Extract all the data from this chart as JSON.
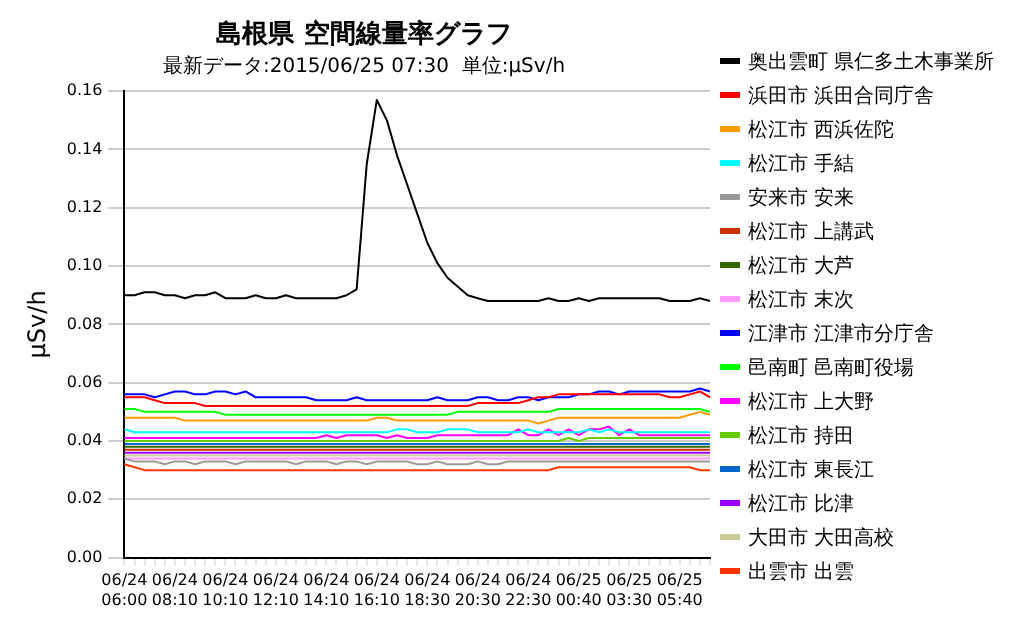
{
  "chart_data": {
    "type": "line",
    "title": "島根県 空間線量率グラフ",
    "subtitle": "最新データ:2015/06/25 07:30  単位:μSv/h",
    "ylabel": "μSv/h",
    "categories": [
      "06/24 06:00",
      null,
      null,
      null,
      null,
      "06/24 08:10",
      null,
      null,
      null,
      null,
      "06/24 10:10",
      null,
      null,
      null,
      null,
      "06/24 12:10",
      null,
      null,
      null,
      null,
      "06/24 14:10",
      null,
      null,
      null,
      null,
      "06/24 16:10",
      null,
      null,
      null,
      null,
      "06/24 18:30",
      null,
      null,
      null,
      null,
      "06/24 20:30",
      null,
      null,
      null,
      null,
      "06/24 22:30",
      null,
      null,
      null,
      null,
      "06/25 00:40",
      null,
      null,
      null,
      null,
      "06/25 03:30",
      null,
      null,
      null,
      null,
      "06/25 05:40",
      null,
      null,
      null
    ],
    "ylim": [
      0,
      0.16
    ],
    "yticks": [
      {
        "value": 0,
        "label": "0.00"
      },
      {
        "value": 0.02,
        "label": "0.02"
      },
      {
        "value": 0.04,
        "label": "0.04"
      },
      {
        "value": 0.06,
        "label": "0.06"
      },
      {
        "value": 0.08,
        "label": "0.08"
      },
      {
        "value": 0.1,
        "label": "0.10"
      },
      {
        "value": 0.12,
        "label": "0.12"
      },
      {
        "value": 0.14,
        "label": "0.14"
      },
      {
        "value": 0.16,
        "label": "0.16"
      }
    ],
    "grid": "y",
    "legend": "right",
    "marker": "none",
    "line_style": "solid",
    "series": [
      {
        "name": "奥出雲町 県仁多土木事業所",
        "color": "#000000",
        "values": [
          0.09,
          0.09,
          0.091,
          0.091,
          0.09,
          0.09,
          0.089,
          0.09,
          0.09,
          0.091,
          0.089,
          0.089,
          0.089,
          0.09,
          0.089,
          0.089,
          0.09,
          0.089,
          0.089,
          0.089,
          0.089,
          0.089,
          0.09,
          0.092,
          0.135,
          0.157,
          0.15,
          0.138,
          0.128,
          0.118,
          0.108,
          0.101,
          0.096,
          0.093,
          0.09,
          0.089,
          0.088,
          0.088,
          0.088,
          0.088,
          0.088,
          0.088,
          0.089,
          0.088,
          0.088,
          0.089,
          0.088,
          0.089,
          0.089,
          0.089,
          0.089,
          0.089,
          0.089,
          0.089,
          0.088,
          0.088,
          0.088,
          0.089,
          0.088
        ]
      },
      {
        "name": "浜田市 浜田合同庁舎",
        "color": "#ff0000",
        "values": [
          0.055,
          0.055,
          0.055,
          0.054,
          0.053,
          0.053,
          0.053,
          0.053,
          0.052,
          0.052,
          0.052,
          0.052,
          0.052,
          0.052,
          0.052,
          0.052,
          0.052,
          0.052,
          0.052,
          0.052,
          0.052,
          0.052,
          0.052,
          0.052,
          0.052,
          0.052,
          0.052,
          0.052,
          0.052,
          0.052,
          0.052,
          0.052,
          0.052,
          0.052,
          0.052,
          0.053,
          0.053,
          0.053,
          0.053,
          0.053,
          0.054,
          0.055,
          0.055,
          0.056,
          0.056,
          0.056,
          0.056,
          0.056,
          0.056,
          0.056,
          0.056,
          0.056,
          0.056,
          0.056,
          0.055,
          0.055,
          0.056,
          0.057,
          0.055
        ]
      },
      {
        "name": "松江市 西浜佐陀",
        "color": "#ff9900",
        "values": [
          0.048,
          0.048,
          0.048,
          0.048,
          0.048,
          0.048,
          0.047,
          0.047,
          0.047,
          0.047,
          0.047,
          0.047,
          0.047,
          0.047,
          0.047,
          0.047,
          0.047,
          0.047,
          0.047,
          0.047,
          0.047,
          0.047,
          0.047,
          0.047,
          0.047,
          0.048,
          0.048,
          0.047,
          0.047,
          0.047,
          0.047,
          0.047,
          0.047,
          0.047,
          0.047,
          0.047,
          0.047,
          0.047,
          0.047,
          0.047,
          0.047,
          0.046,
          0.047,
          0.048,
          0.048,
          0.048,
          0.048,
          0.048,
          0.048,
          0.048,
          0.048,
          0.048,
          0.048,
          0.048,
          0.048,
          0.048,
          0.049,
          0.05,
          0.049
        ]
      },
      {
        "name": "松江市 手結",
        "color": "#00ffff",
        "values": [
          0.044,
          0.043,
          0.043,
          0.043,
          0.043,
          0.043,
          0.043,
          0.043,
          0.043,
          0.043,
          0.043,
          0.043,
          0.043,
          0.043,
          0.043,
          0.043,
          0.043,
          0.043,
          0.043,
          0.043,
          0.043,
          0.043,
          0.043,
          0.043,
          0.043,
          0.043,
          0.043,
          0.044,
          0.044,
          0.043,
          0.043,
          0.043,
          0.044,
          0.044,
          0.044,
          0.043,
          0.043,
          0.043,
          0.043,
          0.043,
          0.044,
          0.043,
          0.043,
          0.043,
          0.043,
          0.043,
          0.044,
          0.043,
          0.044,
          0.043,
          0.043,
          0.043,
          0.043,
          0.043,
          0.043,
          0.043,
          0.043,
          0.043,
          0.043
        ]
      },
      {
        "name": "安来市 安来",
        "color": "#999999",
        "values": [
          0.034,
          0.033,
          0.033,
          0.033,
          0.032,
          0.033,
          0.033,
          0.032,
          0.033,
          0.033,
          0.033,
          0.032,
          0.033,
          0.033,
          0.033,
          0.033,
          0.033,
          0.032,
          0.033,
          0.033,
          0.033,
          0.032,
          0.033,
          0.033,
          0.032,
          0.033,
          0.033,
          0.033,
          0.033,
          0.032,
          0.032,
          0.033,
          0.032,
          0.032,
          0.032,
          0.033,
          0.032,
          0.032,
          0.033,
          0.033,
          0.033,
          0.033,
          0.033,
          0.033,
          0.033,
          0.033,
          0.033,
          0.033,
          0.033,
          0.033,
          0.033,
          0.033,
          0.033,
          0.033,
          0.033,
          0.033,
          0.033,
          0.033,
          0.033
        ]
      },
      {
        "name": "松江市 上講武",
        "color": "#cc3300",
        "values": [
          0.037,
          0.037,
          0.037,
          0.037,
          0.037,
          0.037,
          0.037,
          0.037,
          0.037,
          0.037,
          0.037,
          0.037,
          0.037,
          0.037,
          0.037,
          0.037,
          0.037,
          0.037,
          0.037,
          0.037,
          0.037,
          0.037,
          0.037,
          0.037,
          0.037,
          0.037,
          0.037,
          0.037,
          0.037,
          0.037,
          0.037,
          0.037,
          0.037,
          0.037,
          0.037,
          0.037,
          0.037,
          0.037,
          0.037,
          0.037,
          0.037,
          0.037,
          0.037,
          0.037,
          0.037,
          0.037,
          0.037,
          0.037,
          0.037,
          0.037,
          0.037,
          0.037,
          0.037,
          0.037,
          0.037,
          0.037,
          0.037,
          0.037,
          0.037
        ]
      },
      {
        "name": "松江市 大芦",
        "color": "#336600",
        "values": [
          0.038,
          0.038,
          0.038,
          0.038,
          0.038,
          0.038,
          0.038,
          0.038,
          0.038,
          0.038,
          0.038,
          0.038,
          0.038,
          0.038,
          0.038,
          0.038,
          0.038,
          0.038,
          0.038,
          0.038,
          0.038,
          0.038,
          0.038,
          0.038,
          0.038,
          0.038,
          0.038,
          0.038,
          0.038,
          0.038,
          0.038,
          0.038,
          0.038,
          0.038,
          0.038,
          0.038,
          0.038,
          0.038,
          0.038,
          0.038,
          0.038,
          0.038,
          0.038,
          0.038,
          0.038,
          0.038,
          0.038,
          0.038,
          0.038,
          0.038,
          0.038,
          0.038,
          0.038,
          0.038,
          0.038,
          0.038,
          0.038,
          0.038,
          0.038
        ]
      },
      {
        "name": "松江市 末次",
        "color": "#ff99ff",
        "values": [
          0.034,
          0.034,
          0.034,
          0.034,
          0.034,
          0.034,
          0.034,
          0.034,
          0.034,
          0.034,
          0.034,
          0.034,
          0.034,
          0.034,
          0.034,
          0.034,
          0.034,
          0.034,
          0.034,
          0.034,
          0.034,
          0.034,
          0.034,
          0.034,
          0.034,
          0.034,
          0.034,
          0.034,
          0.034,
          0.034,
          0.034,
          0.034,
          0.034,
          0.034,
          0.034,
          0.034,
          0.034,
          0.034,
          0.034,
          0.034,
          0.034,
          0.034,
          0.034,
          0.034,
          0.034,
          0.034,
          0.034,
          0.034,
          0.034,
          0.034,
          0.034,
          0.034,
          0.034,
          0.034,
          0.034,
          0.034,
          0.034,
          0.034,
          0.034
        ]
      },
      {
        "name": "江津市 江津市分庁舎",
        "color": "#0000ff",
        "values": [
          0.056,
          0.056,
          0.056,
          0.055,
          0.056,
          0.057,
          0.057,
          0.056,
          0.056,
          0.057,
          0.057,
          0.056,
          0.057,
          0.055,
          0.055,
          0.055,
          0.055,
          0.055,
          0.055,
          0.054,
          0.054,
          0.054,
          0.054,
          0.055,
          0.054,
          0.054,
          0.054,
          0.054,
          0.054,
          0.054,
          0.054,
          0.055,
          0.054,
          0.054,
          0.054,
          0.055,
          0.055,
          0.054,
          0.054,
          0.055,
          0.055,
          0.054,
          0.055,
          0.055,
          0.055,
          0.056,
          0.056,
          0.057,
          0.057,
          0.056,
          0.057,
          0.057,
          0.057,
          0.057,
          0.057,
          0.057,
          0.057,
          0.058,
          0.057
        ]
      },
      {
        "name": "邑南町 邑南町役場",
        "color": "#00ff00",
        "values": [
          0.051,
          0.051,
          0.05,
          0.05,
          0.05,
          0.05,
          0.05,
          0.05,
          0.05,
          0.05,
          0.049,
          0.049,
          0.049,
          0.049,
          0.049,
          0.049,
          0.049,
          0.049,
          0.049,
          0.049,
          0.049,
          0.049,
          0.049,
          0.049,
          0.049,
          0.049,
          0.049,
          0.049,
          0.049,
          0.049,
          0.049,
          0.049,
          0.049,
          0.05,
          0.05,
          0.05,
          0.05,
          0.05,
          0.05,
          0.05,
          0.05,
          0.05,
          0.05,
          0.051,
          0.051,
          0.051,
          0.051,
          0.051,
          0.051,
          0.051,
          0.051,
          0.051,
          0.051,
          0.051,
          0.051,
          0.051,
          0.051,
          0.051,
          0.05
        ]
      },
      {
        "name": "松江市 上大野",
        "color": "#ff00ff",
        "values": [
          0.041,
          0.041,
          0.041,
          0.041,
          0.041,
          0.041,
          0.041,
          0.041,
          0.041,
          0.041,
          0.041,
          0.041,
          0.041,
          0.041,
          0.041,
          0.041,
          0.041,
          0.041,
          0.041,
          0.041,
          0.042,
          0.041,
          0.042,
          0.042,
          0.042,
          0.042,
          0.041,
          0.042,
          0.041,
          0.041,
          0.041,
          0.042,
          0.042,
          0.042,
          0.042,
          0.042,
          0.042,
          0.042,
          0.042,
          0.044,
          0.042,
          0.042,
          0.044,
          0.042,
          0.044,
          0.042,
          0.044,
          0.044,
          0.045,
          0.042,
          0.044,
          0.042,
          0.042,
          0.042,
          0.042,
          0.042,
          0.042,
          0.042,
          0.042
        ]
      },
      {
        "name": "松江市 持田",
        "color": "#66cc00",
        "values": [
          0.04,
          0.04,
          0.04,
          0.04,
          0.04,
          0.04,
          0.04,
          0.04,
          0.04,
          0.04,
          0.04,
          0.04,
          0.04,
          0.04,
          0.04,
          0.04,
          0.04,
          0.04,
          0.04,
          0.04,
          0.04,
          0.04,
          0.04,
          0.04,
          0.04,
          0.04,
          0.04,
          0.04,
          0.04,
          0.04,
          0.04,
          0.04,
          0.04,
          0.04,
          0.04,
          0.04,
          0.04,
          0.04,
          0.04,
          0.04,
          0.04,
          0.04,
          0.04,
          0.04,
          0.041,
          0.04,
          0.041,
          0.041,
          0.041,
          0.041,
          0.041,
          0.041,
          0.041,
          0.041,
          0.041,
          0.041,
          0.041,
          0.041,
          0.041
        ]
      },
      {
        "name": "松江市 東長江",
        "color": "#0066cc",
        "values": [
          0.039,
          0.039,
          0.039,
          0.039,
          0.039,
          0.039,
          0.039,
          0.039,
          0.039,
          0.039,
          0.039,
          0.039,
          0.039,
          0.039,
          0.039,
          0.039,
          0.039,
          0.039,
          0.039,
          0.039,
          0.039,
          0.039,
          0.039,
          0.039,
          0.039,
          0.039,
          0.039,
          0.039,
          0.039,
          0.039,
          0.039,
          0.039,
          0.039,
          0.039,
          0.039,
          0.039,
          0.039,
          0.039,
          0.039,
          0.039,
          0.039,
          0.039,
          0.039,
          0.039,
          0.039,
          0.039,
          0.039,
          0.039,
          0.039,
          0.039,
          0.039,
          0.039,
          0.039,
          0.039,
          0.039,
          0.039,
          0.039,
          0.039,
          0.039
        ]
      },
      {
        "name": "松江市 比津",
        "color": "#9900ff",
        "values": [
          0.036,
          0.036,
          0.036,
          0.036,
          0.036,
          0.036,
          0.036,
          0.036,
          0.036,
          0.036,
          0.036,
          0.036,
          0.036,
          0.036,
          0.036,
          0.036,
          0.036,
          0.036,
          0.036,
          0.036,
          0.036,
          0.036,
          0.036,
          0.036,
          0.036,
          0.036,
          0.036,
          0.036,
          0.036,
          0.036,
          0.036,
          0.036,
          0.036,
          0.036,
          0.036,
          0.036,
          0.036,
          0.036,
          0.036,
          0.036,
          0.036,
          0.036,
          0.036,
          0.036,
          0.036,
          0.036,
          0.036,
          0.036,
          0.036,
          0.036,
          0.036,
          0.036,
          0.036,
          0.036,
          0.036,
          0.036,
          0.036,
          0.036,
          0.036
        ]
      },
      {
        "name": "大田市 大田高校",
        "color": "#cccc99",
        "values": [
          0.035,
          0.035,
          0.035,
          0.035,
          0.035,
          0.035,
          0.035,
          0.035,
          0.035,
          0.035,
          0.035,
          0.035,
          0.035,
          0.035,
          0.035,
          0.035,
          0.035,
          0.035,
          0.035,
          0.035,
          0.035,
          0.035,
          0.035,
          0.035,
          0.035,
          0.035,
          0.035,
          0.035,
          0.035,
          0.035,
          0.035,
          0.035,
          0.035,
          0.035,
          0.035,
          0.035,
          0.035,
          0.035,
          0.035,
          0.035,
          0.035,
          0.035,
          0.035,
          0.035,
          0.035,
          0.035,
          0.035,
          0.035,
          0.035,
          0.035,
          0.035,
          0.035,
          0.035,
          0.035,
          0.035,
          0.035,
          0.035,
          0.035,
          0.035
        ]
      },
      {
        "name": "出雲市 出雲",
        "color": "#ff3300",
        "values": [
          0.032,
          0.031,
          0.03,
          0.03,
          0.03,
          0.03,
          0.03,
          0.03,
          0.03,
          0.03,
          0.03,
          0.03,
          0.03,
          0.03,
          0.03,
          0.03,
          0.03,
          0.03,
          0.03,
          0.03,
          0.03,
          0.03,
          0.03,
          0.03,
          0.03,
          0.03,
          0.03,
          0.03,
          0.03,
          0.03,
          0.03,
          0.03,
          0.03,
          0.03,
          0.03,
          0.03,
          0.03,
          0.03,
          0.03,
          0.03,
          0.03,
          0.03,
          0.03,
          0.031,
          0.031,
          0.031,
          0.031,
          0.031,
          0.031,
          0.031,
          0.031,
          0.031,
          0.031,
          0.031,
          0.031,
          0.031,
          0.031,
          0.03,
          0.03
        ]
      }
    ]
  }
}
